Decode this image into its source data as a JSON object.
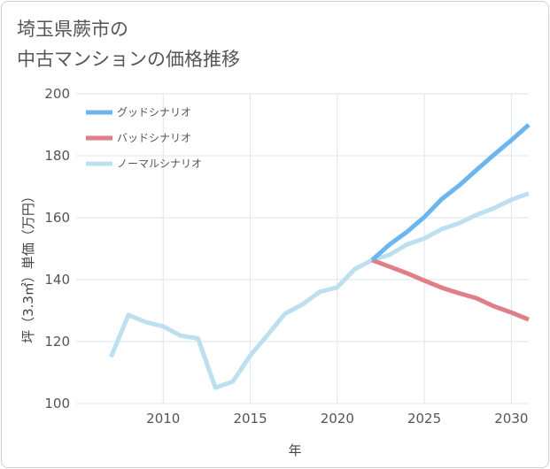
{
  "title_lines": [
    "埼玉県蕨市の",
    "中古マンションの価格推移"
  ],
  "chart_data": {
    "type": "line",
    "title": "埼玉県蕨市の 中古マンションの価格推移",
    "xlabel": "年",
    "ylabel": "坪（3.3㎡）単価（万円）",
    "xlim": [
      2005,
      2031
    ],
    "ylim": [
      100,
      200
    ],
    "x_ticks": [
      2010,
      2015,
      2020,
      2025,
      2030
    ],
    "y_ticks": [
      100,
      120,
      140,
      160,
      180,
      200
    ],
    "x_tick_labels": [
      "2010",
      "2015",
      "2020",
      "2025",
      "2030"
    ],
    "y_tick_labels": [
      "100",
      "120",
      "140",
      "160",
      "180",
      "200"
    ],
    "grid": true,
    "legend_position": "top-left",
    "series": [
      {
        "name": "グッドシナリオ",
        "color": "#6cb6ef",
        "x": [
          2022,
          2023,
          2024,
          2025,
          2026,
          2027,
          2028,
          2029,
          2030,
          2031
        ],
        "y": [
          146.3,
          151.3,
          155.4,
          160.2,
          166.0,
          170.4,
          175.4,
          180.3,
          185.0,
          190.0
        ]
      },
      {
        "name": "バッドシナリオ",
        "color": "#e07f8a",
        "x": [
          2022,
          2023,
          2024,
          2025,
          2026,
          2027,
          2028,
          2029,
          2030,
          2031
        ],
        "y": [
          146.3,
          144.2,
          142.1,
          139.7,
          137.4,
          135.6,
          134.0,
          131.4,
          129.4,
          127.1
        ]
      },
      {
        "name": "ノーマルシナリオ",
        "color": "#bde0f0",
        "x": [
          2007,
          2008,
          2009,
          2010,
          2011,
          2012,
          2013,
          2014,
          2015,
          2016,
          2017,
          2018,
          2019,
          2020,
          2021,
          2022,
          2023,
          2024,
          2025,
          2026,
          2027,
          2028,
          2029,
          2030,
          2031
        ],
        "y": [
          115.0,
          128.6,
          126.3,
          124.9,
          121.9,
          121.0,
          105.1,
          107.1,
          115.5,
          122.2,
          129.0,
          132.0,
          136.1,
          137.5,
          143.4,
          146.3,
          148.0,
          151.3,
          153.3,
          156.3,
          158.2,
          160.9,
          163.1,
          165.8,
          167.8
        ]
      }
    ]
  }
}
